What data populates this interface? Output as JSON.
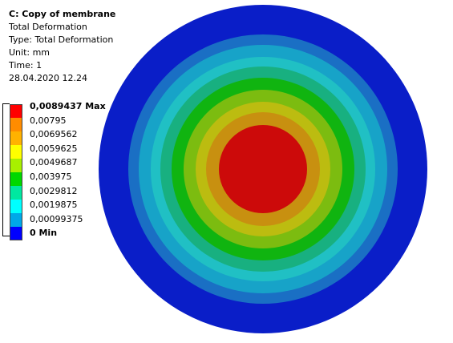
{
  "info": {
    "title": "C: Copy of membrane",
    "line2": "Total Deformation",
    "line3": "Type: Total Deformation",
    "line4": "Unit: mm",
    "line5": "Time: 1",
    "line6": "28.04.2020 12.24"
  },
  "legend": {
    "labels": [
      "0,0089437 Max",
      "0,00795",
      "0,0069562",
      "0,0059625",
      "0,0049687",
      "0,003975",
      "0,0029812",
      "0,0019875",
      "0,00099375",
      "0 Min"
    ],
    "colors": [
      "#ff0000",
      "#ff8c00",
      "#ffb200",
      "#ffff00",
      "#a8f000",
      "#00d800",
      "#00e8a0",
      "#00ffff",
      "#00a8e8",
      "#0000ff"
    ]
  },
  "contour": {
    "rings": [
      {
        "color": "#0a1ec8",
        "value": 0.00099375
      },
      {
        "color": "#1a6fc4",
        "value": 0.0019875
      },
      {
        "color": "#17a3c8",
        "value": 0.0029812
      },
      {
        "color": "#20c0c4",
        "value": 0.003975
      },
      {
        "color": "#18b080",
        "value": 0.0049687
      },
      {
        "color": "#10b410",
        "value": 0.0059625
      },
      {
        "color": "#7cbc10",
        "value": 0.0069562
      },
      {
        "color": "#bcbc10",
        "value": 0.00795
      },
      {
        "color": "#c89010",
        "value": 0.0089437
      },
      {
        "color": "#cc0a0a",
        "value": 0.0089437
      }
    ]
  }
}
